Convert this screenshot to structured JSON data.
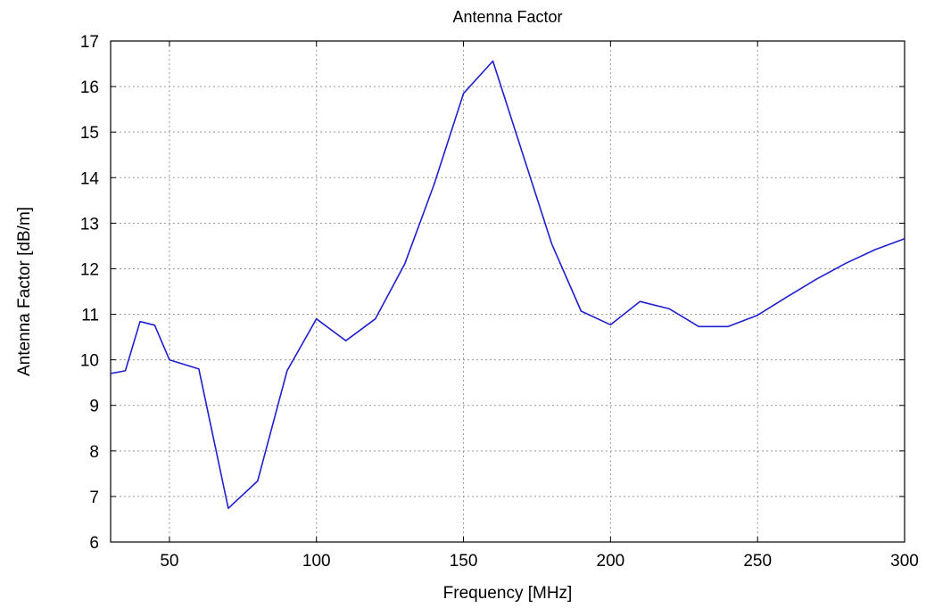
{
  "chart_data": {
    "type": "line",
    "title": "Antenna Factor",
    "xlabel": "Frequency [MHz]",
    "ylabel": "Antenna Factor [dB/m]",
    "xlim": [
      30,
      300
    ],
    "ylim": [
      6,
      17
    ],
    "xticks": [
      50,
      100,
      150,
      200,
      250,
      300
    ],
    "yticks": [
      6,
      7,
      8,
      9,
      10,
      11,
      12,
      13,
      14,
      15,
      16,
      17
    ],
    "grid": true,
    "series": [
      {
        "color": "#1f1fd0",
        "x": [
          30,
          35,
          40,
          45,
          50,
          60,
          70,
          80,
          90,
          100,
          110,
          120,
          130,
          140,
          150,
          160,
          170,
          180,
          190,
          200,
          210,
          220,
          230,
          240,
          250,
          260,
          270,
          280,
          290,
          300
        ],
        "y": [
          9.7,
          9.76,
          10.84,
          10.76,
          10.0,
          9.8,
          6.74,
          7.34,
          9.76,
          10.9,
          10.42,
          10.9,
          12.1,
          13.85,
          15.85,
          16.56,
          14.55,
          12.55,
          11.07,
          10.77,
          11.28,
          11.12,
          10.73,
          10.73,
          10.98,
          11.38,
          11.77,
          12.12,
          12.42,
          12.66
        ]
      }
    ]
  }
}
